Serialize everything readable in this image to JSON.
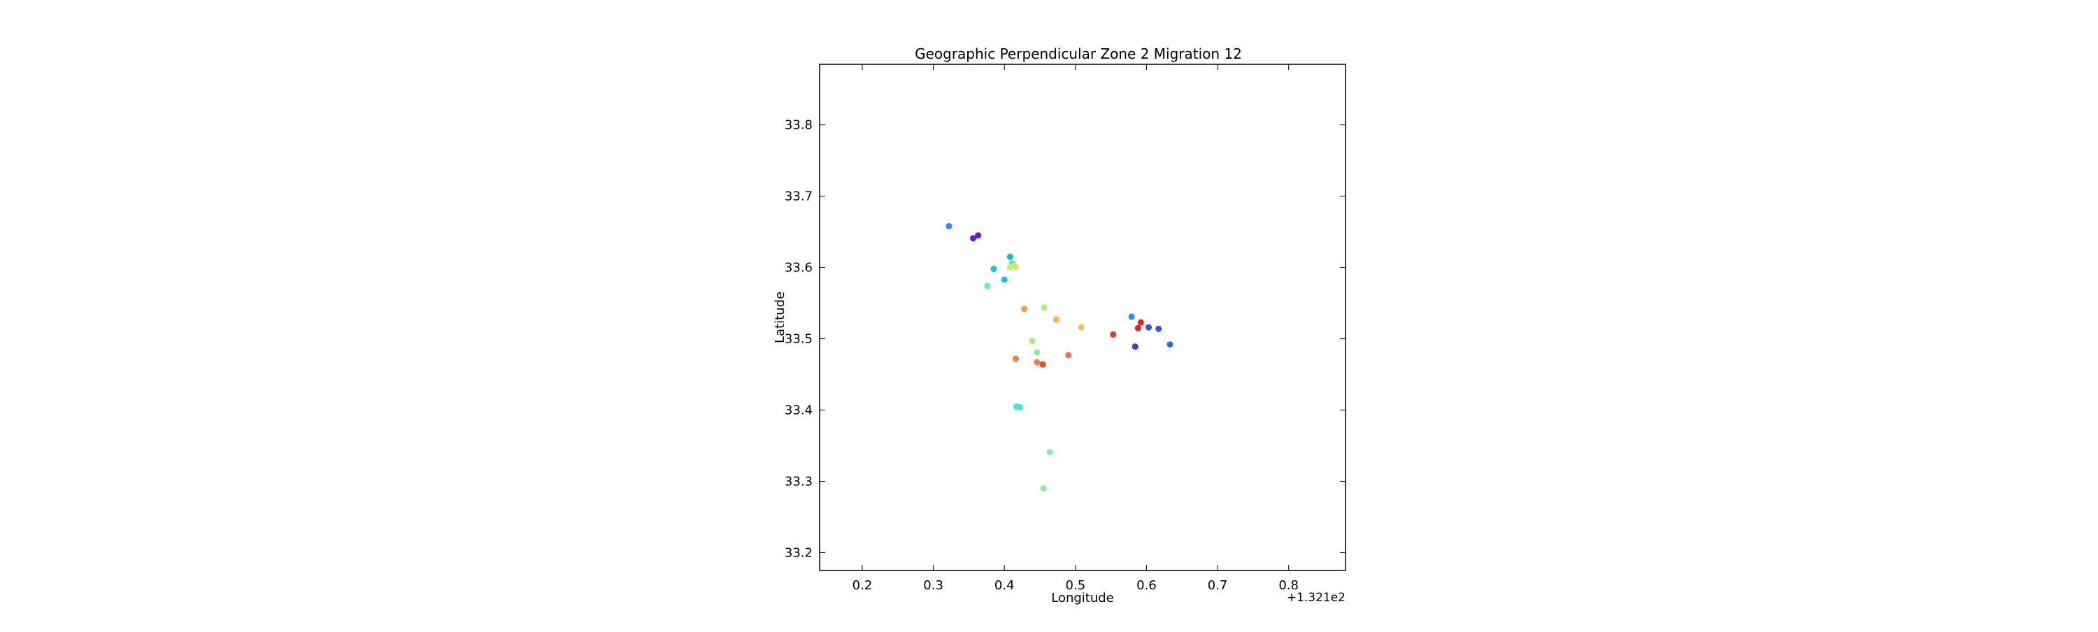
{
  "chart_data": {
    "type": "scatter",
    "title": "Geographic Perpendicular Zone 2 Migration 12",
    "xlabel": "Longitude",
    "ylabel": "Latitude",
    "x_offset_label": "+1.321e2",
    "x_offset": 132.1,
    "xlim": [
      0.14,
      0.88
    ],
    "ylim": [
      33.175,
      33.885
    ],
    "xticks": [
      0.2,
      0.3,
      0.4,
      0.5,
      0.6,
      0.7,
      0.8
    ],
    "xtick_labels": [
      "0.2",
      "0.3",
      "0.4",
      "0.5",
      "0.6",
      "0.7",
      "0.8"
    ],
    "yticks": [
      33.2,
      33.3,
      33.4,
      33.5,
      33.6,
      33.7,
      33.8
    ],
    "ytick_labels": [
      "33.2",
      "33.3",
      "33.4",
      "33.5",
      "33.6",
      "33.7",
      "33.8"
    ],
    "grid": false,
    "legend": "none",
    "points": [
      {
        "x": 0.322,
        "y": 33.658,
        "color": "#1e90ff"
      },
      {
        "x": 0.356,
        "y": 33.641,
        "color": "#6a1bd6"
      },
      {
        "x": 0.363,
        "y": 33.645,
        "color": "#6a1bd6"
      },
      {
        "x": 0.408,
        "y": 33.615,
        "color": "#11b8d8"
      },
      {
        "x": 0.411,
        "y": 33.606,
        "color": "#58e6c4"
      },
      {
        "x": 0.385,
        "y": 33.598,
        "color": "#19bfe6"
      },
      {
        "x": 0.408,
        "y": 33.6,
        "color": "#b8f06a"
      },
      {
        "x": 0.413,
        "y": 33.602,
        "color": "#d6e860"
      },
      {
        "x": 0.416,
        "y": 33.601,
        "color": "#c4ee66"
      },
      {
        "x": 0.4,
        "y": 33.583,
        "color": "#19bfe6"
      },
      {
        "x": 0.376,
        "y": 33.574,
        "color": "#5ef0c8"
      },
      {
        "x": 0.428,
        "y": 33.542,
        "color": "#f89a40"
      },
      {
        "x": 0.456,
        "y": 33.544,
        "color": "#a8f078"
      },
      {
        "x": 0.473,
        "y": 33.527,
        "color": "#f8b050"
      },
      {
        "x": 0.508,
        "y": 33.516,
        "color": "#f0c060"
      },
      {
        "x": 0.439,
        "y": 33.497,
        "color": "#a8f078"
      },
      {
        "x": 0.446,
        "y": 33.481,
        "color": "#88f090"
      },
      {
        "x": 0.416,
        "y": 33.472,
        "color": "#fc7a3a"
      },
      {
        "x": 0.446,
        "y": 33.467,
        "color": "#fc7a3a"
      },
      {
        "x": 0.454,
        "y": 33.464,
        "color": "#ee4c20"
      },
      {
        "x": 0.49,
        "y": 33.477,
        "color": "#f87040"
      },
      {
        "x": 0.553,
        "y": 33.506,
        "color": "#ee3420"
      },
      {
        "x": 0.579,
        "y": 33.531,
        "color": "#1e90ff"
      },
      {
        "x": 0.592,
        "y": 33.523,
        "color": "#ee1c1c"
      },
      {
        "x": 0.588,
        "y": 33.515,
        "color": "#ee1c1c"
      },
      {
        "x": 0.603,
        "y": 33.516,
        "color": "#3a4fe8"
      },
      {
        "x": 0.617,
        "y": 33.514,
        "color": "#3a4fe8"
      },
      {
        "x": 0.584,
        "y": 33.489,
        "color": "#4a2ee0"
      },
      {
        "x": 0.633,
        "y": 33.492,
        "color": "#2a6ef0"
      },
      {
        "x": 0.417,
        "y": 33.405,
        "color": "#44e6cc"
      },
      {
        "x": 0.422,
        "y": 33.404,
        "color": "#44e6cc"
      },
      {
        "x": 0.464,
        "y": 33.341,
        "color": "#7af0b0"
      },
      {
        "x": 0.455,
        "y": 33.29,
        "color": "#88f0a0"
      }
    ]
  }
}
